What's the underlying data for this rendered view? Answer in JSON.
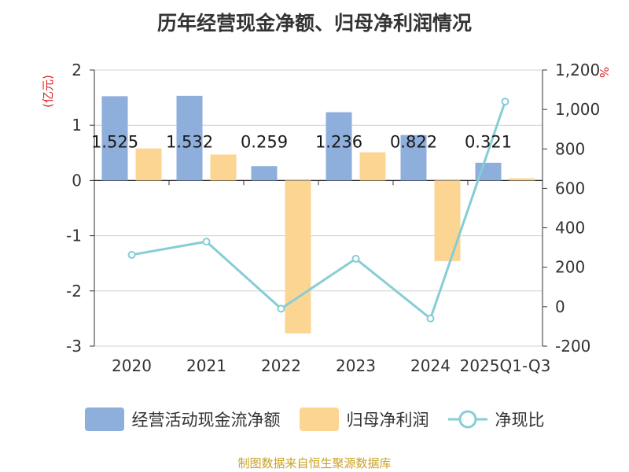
{
  "title": "历年经营现金净额、归母净利润情况",
  "source": "制图数据来自恒生聚源数据库",
  "colors": {
    "cash_flow": "#8eaedb",
    "net_profit": "#fdd592",
    "ratio_line": "#86cdd6",
    "left_unit": "#e02020",
    "source": "#c9a227"
  },
  "chart_data": {
    "type": "bar",
    "categories": [
      "2020",
      "2021",
      "2022",
      "2023",
      "2024",
      "2025Q1-Q3"
    ],
    "y_left": {
      "unit": "(亿元)",
      "ylim": [
        -3,
        2
      ],
      "ticks": [
        -3,
        -2,
        -1,
        0,
        1,
        2
      ]
    },
    "y_right": {
      "unit": "%",
      "ylim": [
        -200,
        1200
      ],
      "ticks": [
        -200,
        0,
        200,
        400,
        600,
        800,
        1000,
        1200
      ],
      "tick_labels": [
        "-200",
        "0",
        "200",
        "400",
        "600",
        "800",
        "1,000",
        "1,200"
      ]
    },
    "grid": true,
    "legend_position": "bottom",
    "series": [
      {
        "name": "经营活动现金流净额",
        "type": "bar",
        "axis": "left",
        "values": [
          1.525,
          1.532,
          0.259,
          1.236,
          0.822,
          0.321
        ],
        "labels": [
          "1.525",
          "1.532",
          "0.259",
          "1.236",
          "0.822",
          "0.321"
        ]
      },
      {
        "name": "归母净利润",
        "type": "bar",
        "axis": "left",
        "values": [
          0.58,
          0.47,
          -2.77,
          0.51,
          -1.46,
          0.04
        ]
      },
      {
        "name": "净现比",
        "type": "line",
        "axis": "right",
        "values": [
          263,
          330,
          -10,
          243,
          -60,
          1040
        ]
      }
    ]
  }
}
